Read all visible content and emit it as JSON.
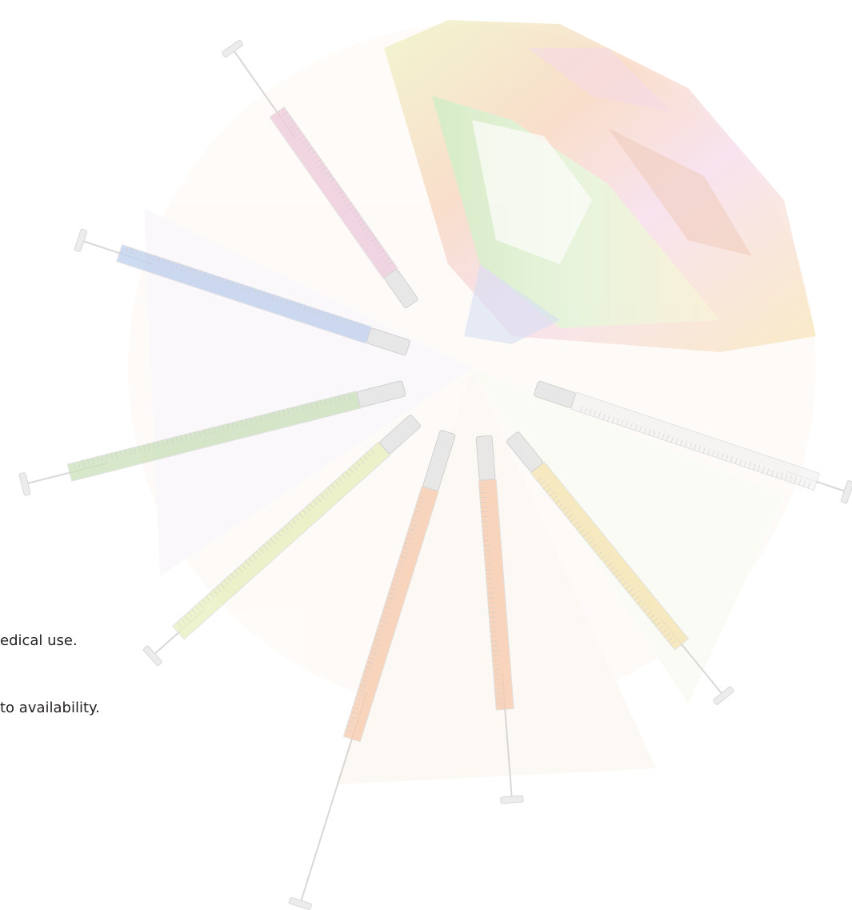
{
  "text_lines": [
    "edical use.",
    "to availability."
  ]
}
